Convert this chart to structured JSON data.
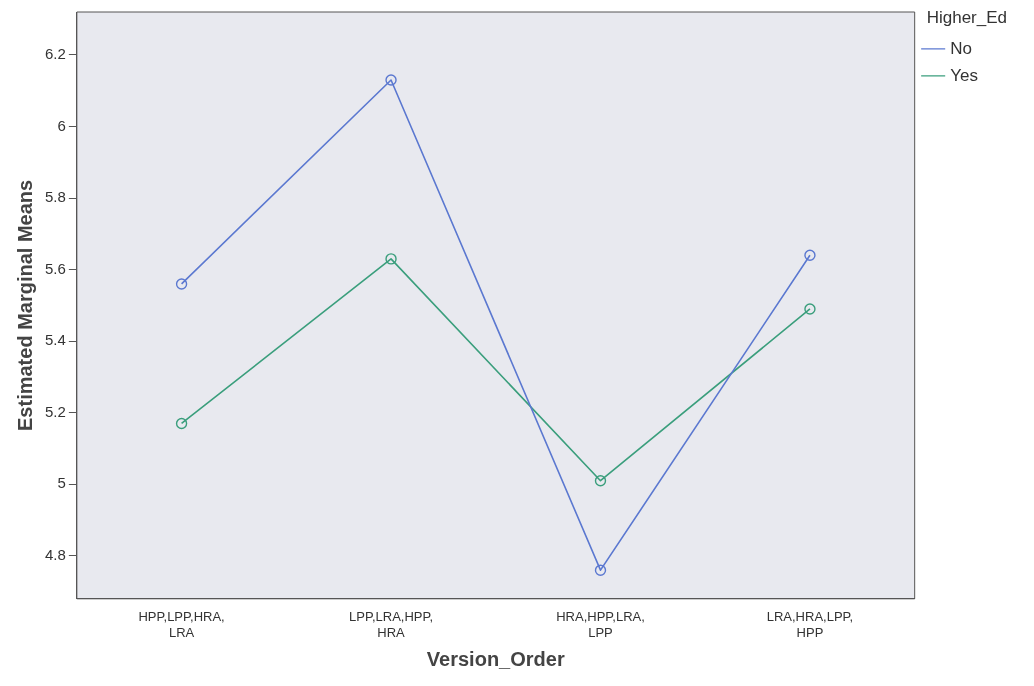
{
  "chart_data": {
    "type": "line",
    "xlabel": "Version_Order",
    "ylabel": "Estimated Marginal Means",
    "legend_title": "Higher_Ed",
    "categories": [
      "HPP,LPP,HRA,LRA",
      "LPP,LRA,HPP,HRA",
      "HRA,HPP,LRA,LPP",
      "LRA,HRA,LPP,HPP"
    ],
    "series": [
      {
        "name": "No",
        "color": "#5b78d0",
        "values": [
          5.56,
          6.13,
          4.76,
          5.64
        ]
      },
      {
        "name": "Yes",
        "color": "#3a9e7c",
        "values": [
          5.17,
          5.63,
          5.01,
          5.49
        ]
      }
    ],
    "ylim": [
      4.68,
      6.32
    ],
    "yticks": [
      4.8,
      5,
      5.2,
      5.4,
      5.6,
      5.8,
      6,
      6.2
    ],
    "grid": false,
    "legend": "top right",
    "marker": "circle",
    "line_style": "solid"
  }
}
